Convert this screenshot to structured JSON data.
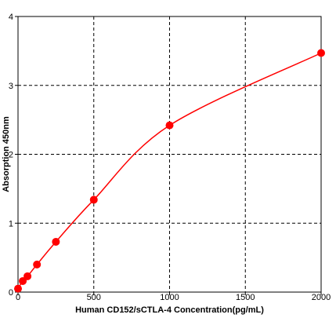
{
  "chart_data": {
    "type": "scatter",
    "title": "",
    "xlabel": "Human CD152/sCTLA-4  Concentration(pg/mL)",
    "ylabel": "Absorption 450nm",
    "xlim": [
      0,
      2000
    ],
    "ylim": [
      0,
      4
    ],
    "x_ticks": [
      0,
      500,
      1000,
      1500,
      2000
    ],
    "y_ticks": [
      0,
      1,
      2,
      3,
      4
    ],
    "grid": true,
    "grid_style": "dashed",
    "colors": {
      "series": "#ff0000",
      "grid": "#000000",
      "axes": "#000000"
    },
    "series": [
      {
        "points": [
          {
            "x": 0,
            "y": 0.05
          },
          {
            "x": 31.25,
            "y": 0.16
          },
          {
            "x": 62.5,
            "y": 0.23
          },
          {
            "x": 125,
            "y": 0.4
          },
          {
            "x": 250,
            "y": 0.73
          },
          {
            "x": 500,
            "y": 1.34
          },
          {
            "x": 1000,
            "y": 2.42
          },
          {
            "x": 2000,
            "y": 3.47
          }
        ],
        "fit_curve": true
      }
    ]
  }
}
